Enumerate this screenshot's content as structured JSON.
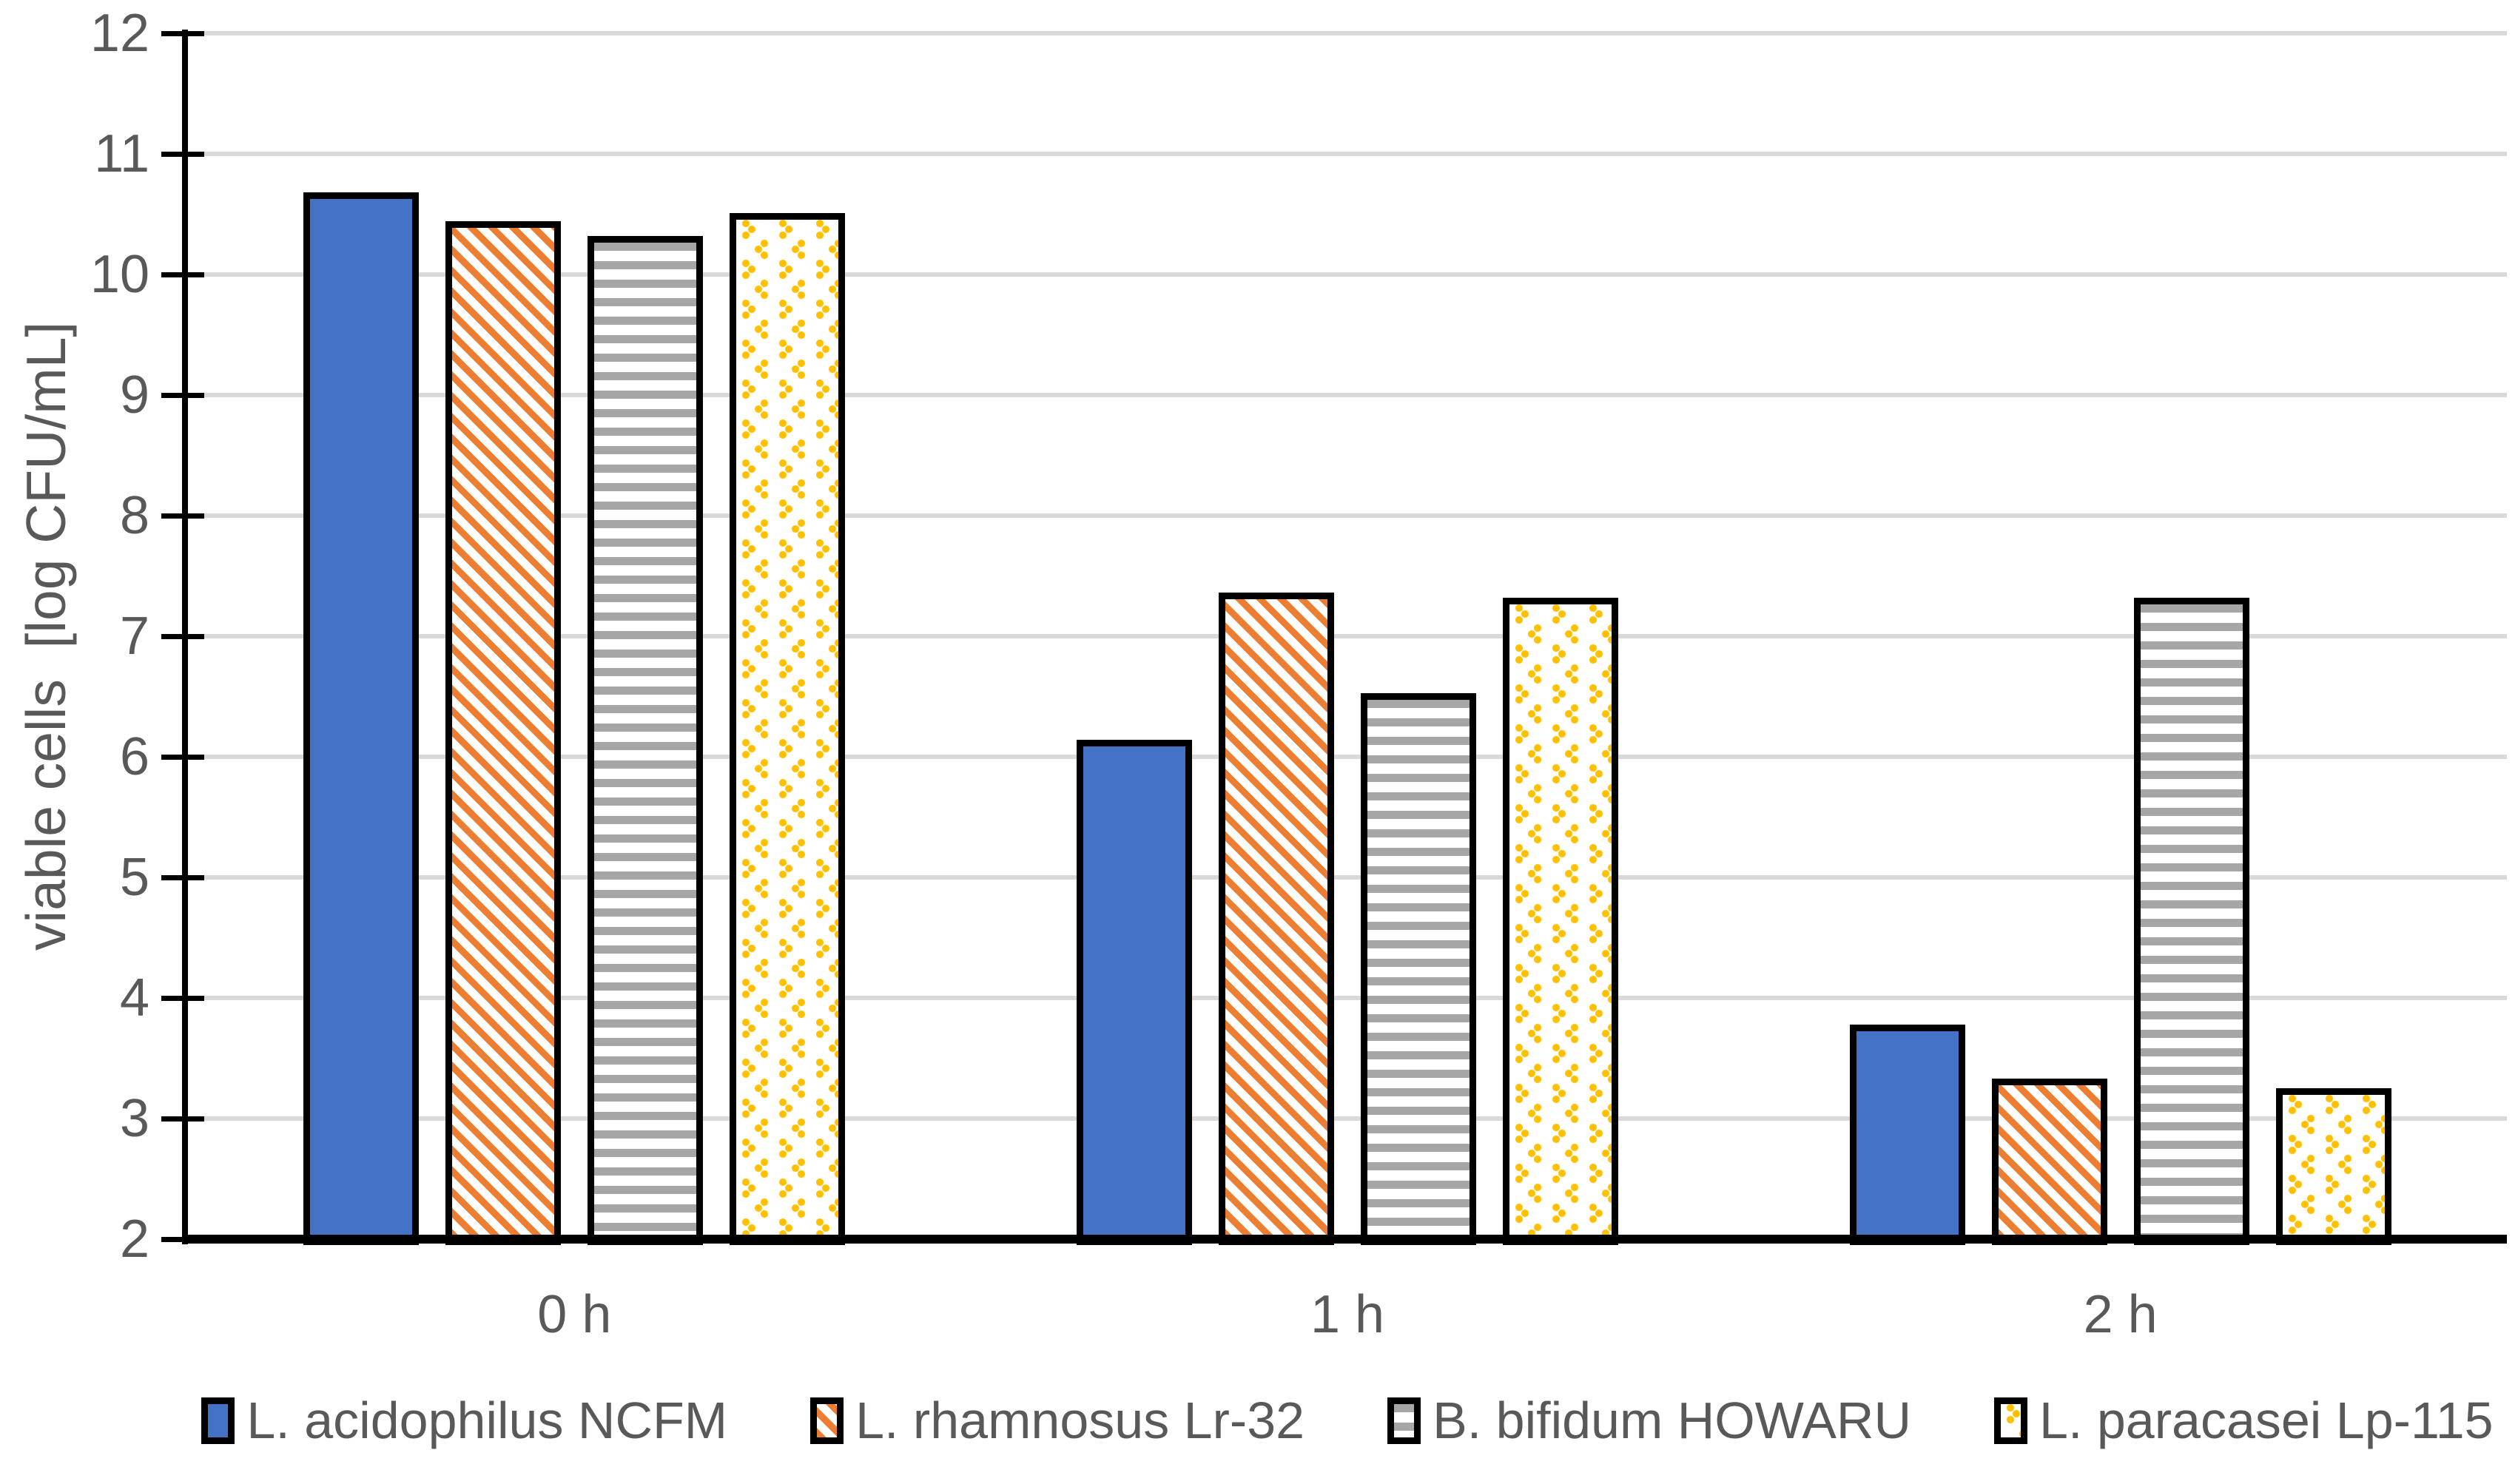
{
  "chart_data": {
    "type": "bar",
    "title": "",
    "xlabel": "",
    "ylabel": "viable cells  [log CFU/mL]",
    "categories": [
      "0 h",
      "1 h",
      "2 h"
    ],
    "y_ticks": [
      12,
      11,
      10,
      9,
      8,
      7,
      6,
      5,
      4,
      3,
      2
    ],
    "ylim": [
      2,
      12
    ],
    "grid": true,
    "legend_position": "bottom",
    "series": [
      {
        "name": "L. acidophilus NCFM",
        "pattern": "solid",
        "color": "#4472C4",
        "values": [
          10.68,
          6.14,
          3.78
        ]
      },
      {
        "name": "L. rhamnosus Lr-32",
        "pattern": "diagonal-stripes",
        "color": "#ED7D31",
        "values": [
          10.44,
          7.36,
          3.33
        ]
      },
      {
        "name": "B. bifidum HOWARU",
        "pattern": "horizontal-stripes",
        "color": "#A6A6A6",
        "values": [
          10.32,
          6.53,
          7.32
        ]
      },
      {
        "name": "L. paracasei Lp-115",
        "pattern": "chevron-dots",
        "color": "#FFC000",
        "values": [
          10.51,
          7.32,
          3.25
        ]
      }
    ],
    "colors": {
      "axis": "#000000",
      "grid": "#D9D9D9",
      "text": "#595959",
      "bar_border": "#000000",
      "bar_background": "#FFFFFF"
    }
  }
}
